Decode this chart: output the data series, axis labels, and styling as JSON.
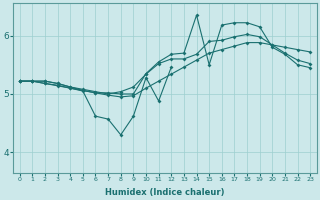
{
  "xlabel": "Humidex (Indice chaleur)",
  "bg_color": "#cce8ea",
  "line_color": "#1a7070",
  "grid_color": "#9ecfcf",
  "xlim": [
    -0.5,
    23.5
  ],
  "ylim": [
    3.65,
    6.55
  ],
  "yticks": [
    4,
    5,
    6
  ],
  "xticks": [
    0,
    1,
    2,
    3,
    4,
    5,
    6,
    7,
    8,
    9,
    10,
    11,
    12,
    13,
    14,
    15,
    16,
    17,
    18,
    19,
    20,
    21,
    22,
    23
  ],
  "line1_x": [
    0,
    1,
    2,
    3,
    4,
    5,
    6,
    7,
    8,
    9,
    10,
    11,
    12,
    13,
    14,
    15,
    16,
    17,
    18,
    19,
    20,
    21,
    22,
    23
  ],
  "line1_y": [
    5.22,
    5.22,
    5.18,
    5.14,
    5.1,
    5.06,
    5.02,
    4.98,
    4.95,
    4.97,
    5.1,
    5.22,
    5.34,
    5.46,
    5.58,
    5.7,
    5.76,
    5.82,
    5.88,
    5.88,
    5.84,
    5.8,
    5.76,
    5.72
  ],
  "line2_x": [
    0,
    1,
    2,
    3,
    4,
    5,
    6,
    7,
    8,
    9,
    10,
    11,
    12,
    13,
    14,
    15,
    16,
    17,
    18,
    19,
    20,
    21,
    22,
    23
  ],
  "line2_y": [
    5.22,
    5.22,
    5.22,
    5.18,
    5.12,
    5.08,
    5.04,
    5.0,
    5.04,
    5.12,
    5.34,
    5.52,
    5.6,
    5.6,
    5.68,
    5.9,
    5.92,
    5.98,
    6.02,
    5.98,
    5.84,
    5.7,
    5.58,
    5.52
  ],
  "line3_x": [
    0,
    1,
    2,
    3,
    4,
    5,
    6,
    7,
    8,
    9,
    10,
    11,
    12,
    13,
    14,
    15,
    16,
    17,
    18,
    19,
    20,
    21,
    22,
    23
  ],
  "line3_y": [
    5.22,
    5.22,
    5.22,
    5.18,
    5.12,
    5.06,
    5.02,
    5.02,
    5.0,
    5.0,
    5.35,
    5.55,
    5.68,
    5.7,
    6.35,
    5.5,
    6.18,
    6.22,
    6.22,
    6.15,
    5.8,
    5.68,
    5.5,
    5.45
  ],
  "line4_x": [
    0,
    1,
    2,
    3,
    4,
    5,
    6,
    7,
    8,
    9,
    10,
    11,
    12
  ],
  "line4_y": [
    5.22,
    5.22,
    5.18,
    5.15,
    5.1,
    5.05,
    4.62,
    4.57,
    4.3,
    4.62,
    5.28,
    4.88,
    5.46
  ],
  "markersize": 2.0,
  "linewidth": 0.8
}
